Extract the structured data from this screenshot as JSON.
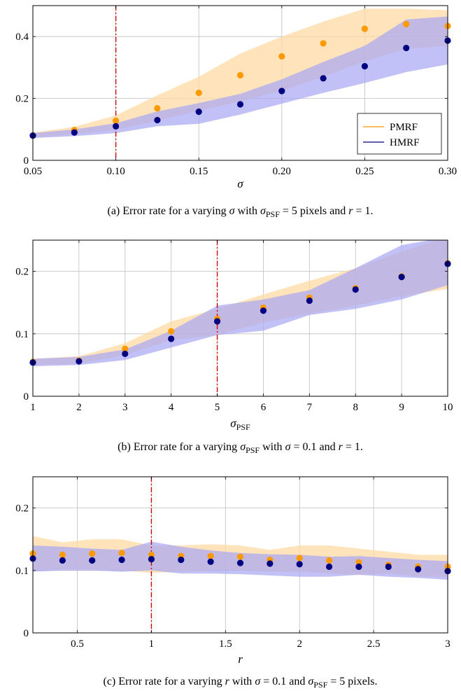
{
  "colors": {
    "pmrf": "#ff9900",
    "hmrf": "#000080",
    "pmrf_band": "#ffd9a3",
    "hmrf_band": "#a7a7f5",
    "ref_line": "#cc0000",
    "grid": "#bfbfbf"
  },
  "legend": {
    "pmrf": "PMRF",
    "hmrf": "HMRF"
  },
  "chart_data": [
    {
      "id": "a",
      "type": "scatter",
      "xlabel": "σ",
      "caption": "(a) Error rate for a varying σ with σ_PSF = 5 pixels and r = 1.",
      "xlim": [
        0.05,
        0.3
      ],
      "ylim": [
        0,
        0.5
      ],
      "xticks": [
        0.05,
        0.1,
        0.15,
        0.2,
        0.25,
        0.3
      ],
      "xtick_labels": [
        "0.05",
        "0.10",
        "0.15",
        "0.20",
        "0.25",
        "0.30"
      ],
      "yticks": [
        0,
        0.2,
        0.4
      ],
      "ytick_labels": [
        "0",
        "0.2",
        "0.4"
      ],
      "ref_x": 0.1,
      "legend_position": "bottom-right",
      "grid": true,
      "x": [
        0.05,
        0.075,
        0.1,
        0.125,
        0.15,
        0.175,
        0.2,
        0.225,
        0.25,
        0.275,
        0.3
      ],
      "series": [
        {
          "name": "PMRF",
          "values": [
            0.08,
            0.098,
            0.128,
            0.168,
            0.218,
            0.275,
            0.336,
            0.378,
            0.425,
            0.44,
            0.434
          ],
          "band_low": [
            0.073,
            0.085,
            0.098,
            0.128,
            0.16,
            0.19,
            0.225,
            0.27,
            0.32,
            0.36,
            0.37
          ],
          "band_high": [
            0.09,
            0.108,
            0.145,
            0.21,
            0.27,
            0.345,
            0.4,
            0.448,
            0.49,
            0.49,
            0.485
          ]
        },
        {
          "name": "HMRF",
          "values": [
            0.08,
            0.09,
            0.11,
            0.13,
            0.157,
            0.181,
            0.224,
            0.265,
            0.304,
            0.363,
            0.387
          ],
          "band_low": [
            0.072,
            0.078,
            0.088,
            0.11,
            0.118,
            0.148,
            0.183,
            0.218,
            0.25,
            0.285,
            0.31
          ],
          "band_high": [
            0.088,
            0.1,
            0.12,
            0.158,
            0.185,
            0.215,
            0.262,
            0.318,
            0.37,
            0.455,
            0.465
          ]
        }
      ]
    },
    {
      "id": "b",
      "type": "scatter",
      "xlabel": "σPSF",
      "caption": "(b) Error rate for a varying σ_PSF with σ = 0.1 and r = 1.",
      "xlim": [
        1,
        10
      ],
      "ylim": [
        0,
        0.25
      ],
      "xticks": [
        1,
        2,
        3,
        4,
        5,
        6,
        7,
        8,
        9,
        10
      ],
      "xtick_labels": [
        "1",
        "2",
        "3",
        "4",
        "5",
        "6",
        "7",
        "8",
        "9",
        "10"
      ],
      "yticks": [
        0,
        0.1,
        0.2
      ],
      "ytick_labels": [
        "0",
        "0.1",
        "0.2"
      ],
      "ref_x": 5,
      "grid": true,
      "x": [
        1,
        2,
        3,
        4,
        5,
        6,
        7,
        8,
        9,
        10
      ],
      "series": [
        {
          "name": "PMRF",
          "values": [
            0.055,
            0.057,
            0.076,
            0.104,
            0.124,
            0.142,
            0.158,
            0.173,
            0.192,
            0.213
          ],
          "band_low": [
            0.05,
            0.052,
            0.066,
            0.09,
            0.098,
            0.118,
            0.132,
            0.145,
            0.16,
            0.172
          ],
          "band_high": [
            0.06,
            0.064,
            0.085,
            0.12,
            0.14,
            0.163,
            0.185,
            0.205,
            0.232,
            0.255
          ]
        },
        {
          "name": "HMRF",
          "values": [
            0.054,
            0.056,
            0.068,
            0.092,
            0.12,
            0.137,
            0.153,
            0.171,
            0.191,
            0.212
          ],
          "band_low": [
            0.048,
            0.05,
            0.058,
            0.078,
            0.098,
            0.105,
            0.13,
            0.14,
            0.155,
            0.178
          ],
          "band_high": [
            0.06,
            0.063,
            0.075,
            0.105,
            0.145,
            0.155,
            0.17,
            0.205,
            0.242,
            0.255
          ]
        }
      ]
    },
    {
      "id": "c",
      "type": "scatter",
      "xlabel": "r",
      "caption": "(c) Error rate for a varying r with σ = 0.1 and σ_PSF = 5 pixels.",
      "xlim": [
        0.2,
        3.0
      ],
      "ylim": [
        0,
        0.25
      ],
      "xticks": [
        0.5,
        1,
        1.5,
        2,
        2.5,
        3
      ],
      "xtick_labels": [
        "0.5",
        "1",
        "1.5",
        "2",
        "2.5",
        "3"
      ],
      "yticks": [
        0,
        0.1,
        0.2
      ],
      "ytick_labels": [
        "0",
        "0.1",
        "0.2"
      ],
      "ref_x": 1,
      "grid": true,
      "x": [
        0.2,
        0.4,
        0.6,
        0.8,
        1.0,
        1.2,
        1.4,
        1.6,
        1.8,
        2.0,
        2.2,
        2.4,
        2.6,
        2.8,
        3.0
      ],
      "series": [
        {
          "name": "PMRF",
          "values": [
            0.127,
            0.125,
            0.127,
            0.128,
            0.125,
            0.123,
            0.123,
            0.122,
            0.117,
            0.12,
            0.116,
            0.113,
            0.109,
            0.106,
            0.106
          ],
          "band_low": [
            0.1,
            0.102,
            0.102,
            0.1,
            0.096,
            0.098,
            0.1,
            0.1,
            0.098,
            0.098,
            0.095,
            0.093,
            0.095,
            0.09,
            0.09
          ],
          "band_high": [
            0.155,
            0.145,
            0.15,
            0.15,
            0.14,
            0.14,
            0.142,
            0.14,
            0.133,
            0.14,
            0.14,
            0.135,
            0.13,
            0.125,
            0.125
          ]
        },
        {
          "name": "HMRF",
          "values": [
            0.119,
            0.116,
            0.116,
            0.117,
            0.118,
            0.117,
            0.114,
            0.112,
            0.111,
            0.11,
            0.106,
            0.106,
            0.106,
            0.102,
            0.099
          ],
          "band_low": [
            0.098,
            0.1,
            0.1,
            0.098,
            0.1,
            0.095,
            0.095,
            0.094,
            0.092,
            0.09,
            0.09,
            0.093,
            0.09,
            0.088,
            0.085
          ],
          "band_high": [
            0.14,
            0.138,
            0.135,
            0.133,
            0.146,
            0.138,
            0.132,
            0.128,
            0.126,
            0.125,
            0.122,
            0.123,
            0.12,
            0.117,
            0.115
          ]
        }
      ]
    }
  ]
}
